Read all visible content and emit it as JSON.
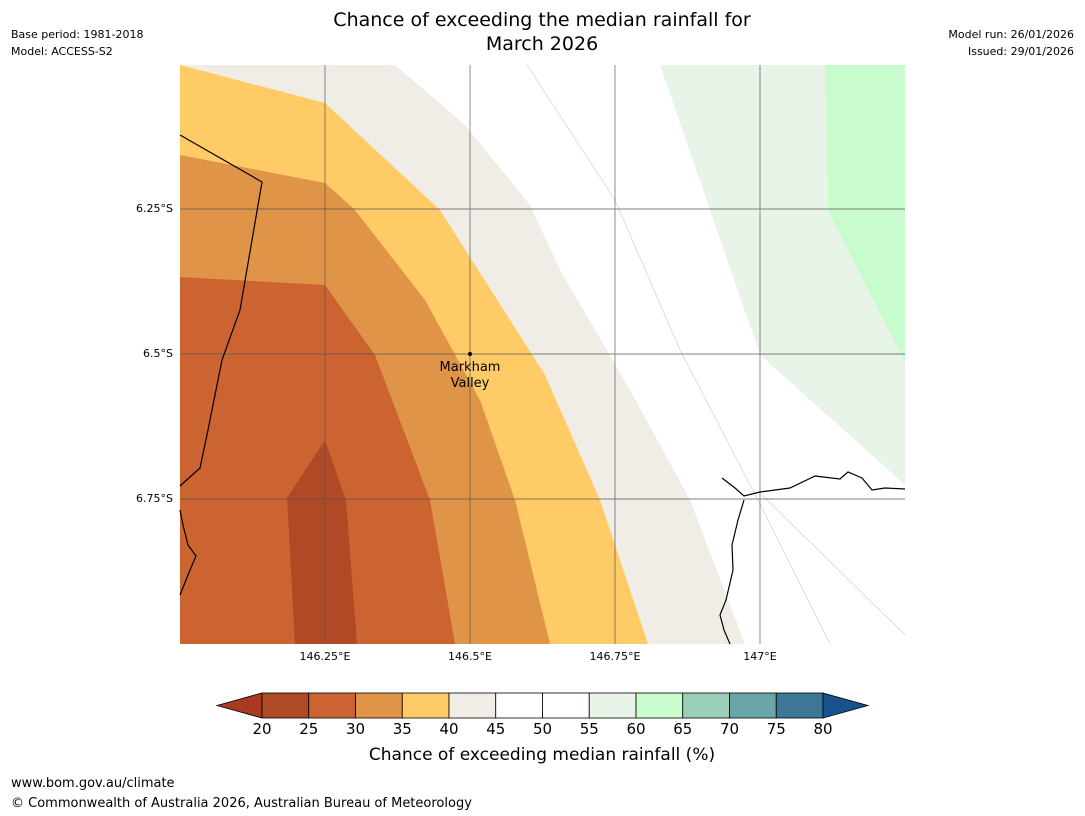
{
  "header": {
    "title_line1": "Chance of exceeding the median rainfall for",
    "title_line2": "March 2026",
    "base_period": "Base period: 1981-2018",
    "model": "Model: ACCESS-S2",
    "model_run": "Model run: 26/01/2026",
    "issued": "Issued: 29/01/2026"
  },
  "map": {
    "lat_labels": [
      "6.25°S",
      "6.5°S",
      "6.75°S"
    ],
    "lon_labels": [
      "146.25°E",
      "146.5°E",
      "146.75°E",
      "147°E"
    ],
    "place": {
      "line1": "Markham",
      "line2": "Valley"
    }
  },
  "colorbar": {
    "ticks": [
      "20",
      "25",
      "30",
      "35",
      "40",
      "45",
      "50",
      "55",
      "60",
      "65",
      "70",
      "75",
      "80"
    ],
    "colors": [
      "#a83a20",
      "#b04a26",
      "#cc6431",
      "#e09448",
      "#fecb67",
      "#f0ece6",
      "#ffffff",
      "#ffffff",
      "#e8f4e8",
      "#c8fccc",
      "#9ccfb8",
      "#6aa6a6",
      "#3e7696",
      "#17518e"
    ],
    "title": "Chance of exceeding median rainfall (%)"
  },
  "footer": {
    "url": "www.bom.gov.au/climate",
    "copyright": "© Commonwealth of Australia 2026, Australian Bureau of Meteorology"
  }
}
